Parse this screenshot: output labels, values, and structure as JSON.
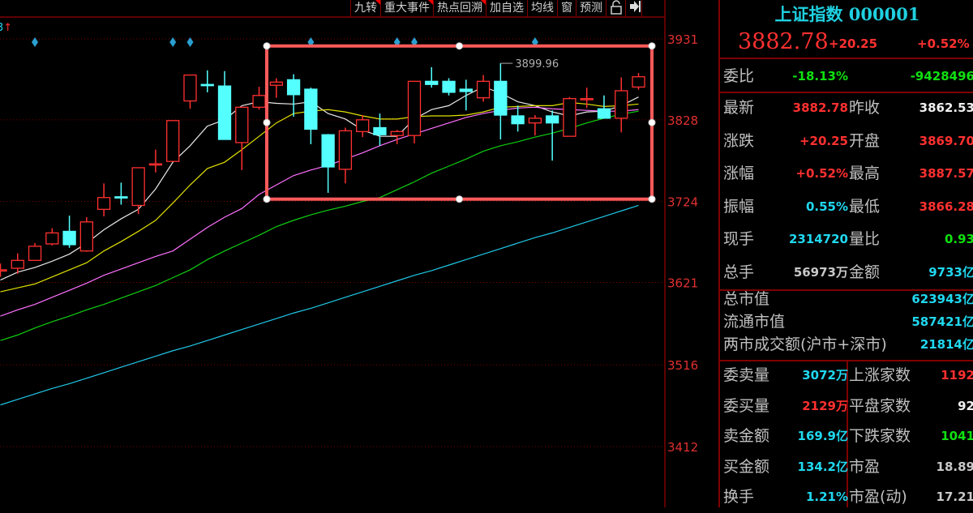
{
  "toolbar": {
    "items": [
      {
        "label": "九转",
        "flag": true
      },
      {
        "label": "重大事件",
        "flag": true
      },
      {
        "label": "热点回溯",
        "flag": true
      },
      {
        "label": "加自选",
        "flag": false
      },
      {
        "label": "均线",
        "flag": false
      },
      {
        "label": "窗",
        "flag": false
      },
      {
        "label": "预测",
        "flag": false
      }
    ],
    "lock_icon": "lock-icon",
    "exit_icon": "arrow-right-bar-icon"
  },
  "chart_corner": {
    "digit": "3",
    "arrow": "↑"
  },
  "chart_data": {
    "type": "candlestick",
    "ylim": [
      3412,
      3931
    ],
    "yticks": [
      "3931",
      "3828",
      "3724",
      "3621",
      "3516",
      "3412"
    ],
    "grid": true,
    "up_color": "#ff3030",
    "down_color": "#54ffff",
    "candles": [
      [
        3636,
        3637,
        3645,
        3628
      ],
      [
        3639,
        3649,
        3658,
        3632
      ],
      [
        3649,
        3667,
        3671,
        3649
      ],
      [
        3670,
        3684,
        3690,
        3668
      ],
      [
        3686,
        3669,
        3706,
        3665
      ],
      [
        3661,
        3698,
        3704,
        3660
      ],
      [
        3714,
        3729,
        3747,
        3705
      ],
      [
        3730,
        3729,
        3748,
        3720
      ],
      [
        3719,
        3767,
        3767,
        3708
      ],
      [
        3771,
        3772,
        3790,
        3761
      ],
      [
        3775,
        3827,
        3827,
        3775
      ],
      [
        3852,
        3885,
        3885,
        3842
      ],
      [
        3873,
        3872,
        3891,
        3863
      ],
      [
        3871,
        3803,
        3890,
        3803
      ],
      [
        3799,
        3844,
        3844,
        3764
      ],
      [
        3844,
        3859,
        3870,
        3841
      ],
      [
        3872,
        3876,
        3881,
        3856
      ],
      [
        3879,
        3860,
        3886,
        3832
      ],
      [
        3867,
        3816,
        3869,
        3797
      ],
      [
        3809,
        3768,
        3810,
        3735
      ],
      [
        3765,
        3814,
        3818,
        3747
      ],
      [
        3813,
        3828,
        3834,
        3806
      ],
      [
        3818,
        3809,
        3836,
        3795
      ],
      [
        3808,
        3813,
        3815,
        3797
      ],
      [
        3808,
        3877,
        3877,
        3798
      ],
      [
        3877,
        3873,
        3895,
        3869
      ],
      [
        3877,
        3863,
        3881,
        3859
      ],
      [
        3867,
        3864,
        3879,
        3840
      ],
      [
        3856,
        3877,
        3885,
        3851
      ],
      [
        3877,
        3834,
        3899.96,
        3803
      ],
      [
        3833,
        3823,
        3846,
        3813
      ],
      [
        3824,
        3830,
        3834,
        3808
      ],
      [
        3833,
        3824,
        3840,
        3776
      ],
      [
        3807,
        3855,
        3857,
        3807
      ],
      [
        3854,
        3855,
        3869,
        3843
      ],
      [
        3842,
        3830,
        3859,
        3830
      ],
      [
        3830,
        3865,
        3882,
        3812
      ],
      [
        3869.7,
        3882.78,
        3887.57,
        3866.28
      ]
    ],
    "ma_lines": [
      {
        "color": "#e8e8e8",
        "values": [
          3624,
          3634,
          3640,
          3648,
          3657,
          3671,
          3688,
          3702,
          3714,
          3740,
          3774,
          3795,
          3820,
          3828,
          3846,
          3851,
          3849,
          3848,
          3851,
          3836,
          3829,
          3815,
          3807,
          3807,
          3829,
          3841,
          3846,
          3859,
          3870,
          3862,
          3851,
          3846,
          3838,
          3833,
          3838,
          3839,
          3846,
          3857
        ]
      },
      {
        "color": "#e0e000",
        "values": [
          3609,
          3614,
          3619,
          3628,
          3637,
          3646,
          3661,
          3673,
          3686,
          3700,
          3722,
          3745,
          3766,
          3774,
          3790,
          3807,
          3824,
          3836,
          3839,
          3841,
          3838,
          3833,
          3829,
          3829,
          3832,
          3833,
          3833,
          3834,
          3838,
          3844,
          3845,
          3846,
          3846,
          3850,
          3848,
          3845,
          3846,
          3848
        ]
      },
      {
        "color": "#ff70ff",
        "values": [
          3578,
          3586,
          3593,
          3602,
          3611,
          3620,
          3630,
          3638,
          3646,
          3654,
          3661,
          3676,
          3691,
          3704,
          3715,
          3733,
          3745,
          3757,
          3764,
          3770,
          3778,
          3786,
          3795,
          3803,
          3810,
          3817,
          3824,
          3831,
          3836,
          3840,
          3843,
          3844,
          3842,
          3841,
          3840,
          3839,
          3839,
          3841
        ]
      },
      {
        "color": "#10d010",
        "values": [
          3547,
          3554,
          3563,
          3571,
          3578,
          3586,
          3593,
          3601,
          3609,
          3617,
          3627,
          3637,
          3650,
          3661,
          3671,
          3681,
          3692,
          3700,
          3707,
          3713,
          3718,
          3724,
          3729,
          3739,
          3749,
          3760,
          3769,
          3778,
          3788,
          3795,
          3800,
          3806,
          3811,
          3817,
          3824,
          3830,
          3835,
          3839
        ]
      },
      {
        "color": "#20c8e8",
        "values": [
          3465,
          3472,
          3479,
          3486,
          3492,
          3499,
          3506,
          3513,
          3520,
          3527,
          3534,
          3540,
          3547,
          3554,
          3561,
          3568,
          3575,
          3582,
          3588,
          3595,
          3602,
          3609,
          3616,
          3623,
          3630,
          3636,
          3643,
          3650,
          3657,
          3664,
          3671,
          3678,
          3684,
          3691,
          3698,
          3705,
          3712,
          3719
        ]
      }
    ],
    "signal_marker_indices": [
      2,
      10,
      11,
      18,
      23,
      24,
      31
    ],
    "annotation": {
      "label": "3899.96",
      "candle_index": 29
    },
    "selection_box": {
      "price_top": 3922,
      "price_bottom": 3727,
      "color": "#ff5a5a"
    }
  },
  "panel": {
    "title": "上证指数 000001",
    "price": "3882.78",
    "change": "+20.25",
    "change_pct": "+0.52%",
    "weibi": {
      "label": "委比",
      "pct": "-18.13%",
      "diff": "-9428496"
    },
    "quote_rows": [
      {
        "l1": "最新",
        "v1": "3882.78",
        "c1": "red",
        "l2": "昨收",
        "v2": "3862.53",
        "c2": "white"
      },
      {
        "l1": "涨跌",
        "v1": "+20.25",
        "c1": "red",
        "l2": "开盘",
        "v2": "3869.70",
        "c2": "red"
      },
      {
        "l1": "涨幅",
        "v1": "+0.52%",
        "c1": "red",
        "l2": "最高",
        "v2": "3887.57",
        "c2": "red"
      },
      {
        "l1": "振幅",
        "v1": "0.55%",
        "c1": "cyan",
        "l2": "最低",
        "v2": "3866.28",
        "c2": "red"
      },
      {
        "l1": "现手",
        "v1": "2314720",
        "c1": "cyan",
        "l2": "量比",
        "v2": "0.93",
        "c2": "green"
      },
      {
        "l1": "总手",
        "v1": "56973万",
        "c1": "gray",
        "l2": "金额",
        "v2": "9733亿",
        "c2": "cyan"
      }
    ],
    "market_rows": [
      {
        "label": "总市值",
        "value": "623943亿"
      },
      {
        "label": "流通市值",
        "value": "587421亿"
      },
      {
        "label": "两市成交额(沪市+深市)",
        "value": "21814亿"
      }
    ],
    "order_rows": [
      {
        "l1": "委卖量",
        "v1": "3072万",
        "c1": "cyan",
        "l2": "上涨家数",
        "v2": "1192",
        "c2": "red"
      },
      {
        "l1": "委买量",
        "v1": "2129万",
        "c1": "red",
        "l2": "平盘家数",
        "v2": "92",
        "c2": "white"
      },
      {
        "l1": "卖金额",
        "v1": "169.9亿",
        "c1": "cyan",
        "l2": "下跌家数",
        "v2": "1041",
        "c2": "green"
      },
      {
        "l1": "买金额",
        "v1": "134.2亿",
        "c1": "cyan",
        "l2": "市盈",
        "v2": "18.89",
        "c2": "gray"
      },
      {
        "l1": "换手",
        "v1": "1.21%",
        "c1": "cyan",
        "l2": "市盈(动)",
        "v2": "17.21",
        "c2": "gray"
      }
    ]
  }
}
